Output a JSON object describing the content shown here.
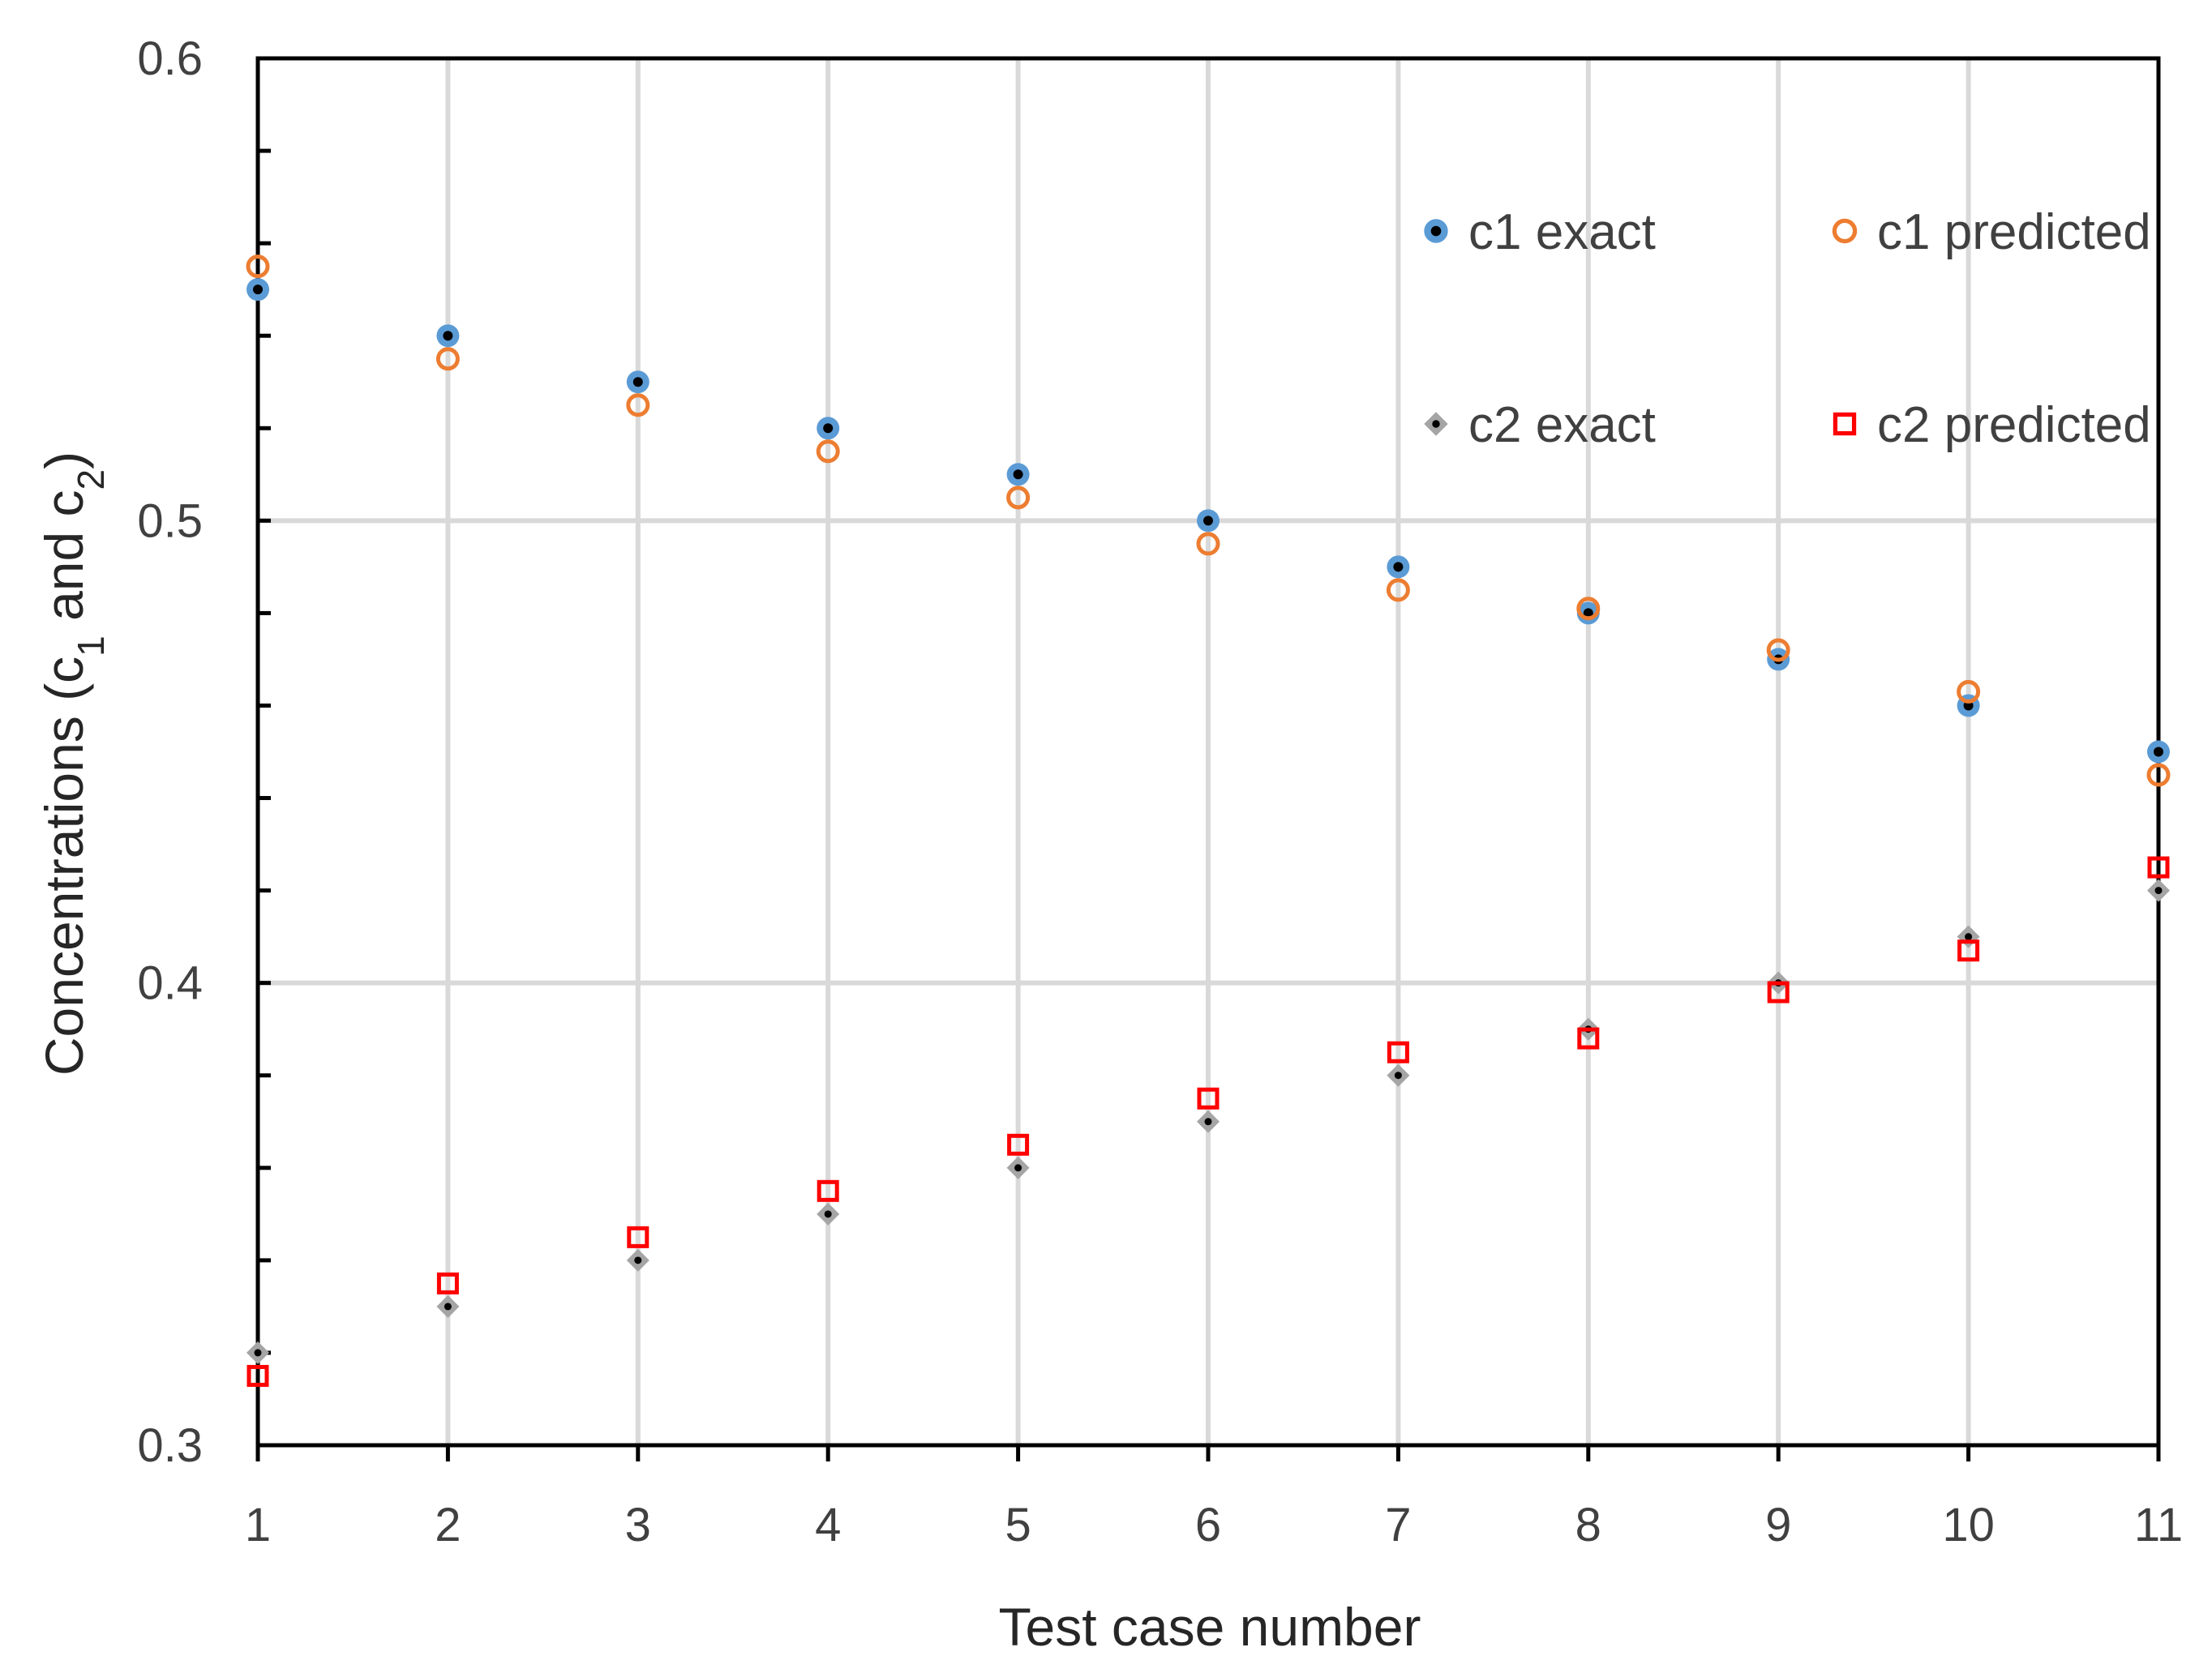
{
  "chart_data": {
    "type": "scatter",
    "title": "",
    "xlabel": "Test case number",
    "ylabel": {
      "main": "Concentrations (c",
      "sub1": "1",
      "mid": " and c",
      "sub2": "2",
      "end": ")"
    },
    "xlim": [
      1,
      11
    ],
    "ylim": [
      0.3,
      0.6
    ],
    "x_ticks": [
      1,
      2,
      3,
      4,
      5,
      6,
      7,
      8,
      9,
      10,
      11
    ],
    "x_tick_labels": [
      "1",
      "2",
      "3",
      "4",
      "5",
      "6",
      "7",
      "8",
      "9",
      "10",
      "11"
    ],
    "y_major_ticks": [
      0.3,
      0.4,
      0.5,
      0.6
    ],
    "y_tick_labels": [
      "0.3",
      "0.4",
      "0.5",
      "0.6"
    ],
    "y_minor_step": 0.02,
    "grid": true,
    "legend_placement": "top-right",
    "x": [
      1,
      2,
      3,
      4,
      5,
      6,
      7,
      8,
      9,
      10,
      11
    ],
    "series": [
      {
        "name": "c1 exact",
        "marker": "filled-circle",
        "color": "#5b9bd5",
        "center_color": "#000000",
        "values": [
          0.55,
          0.54,
          0.53,
          0.52,
          0.51,
          0.5,
          0.49,
          0.48,
          0.47,
          0.46,
          0.45
        ]
      },
      {
        "name": "c1 predicted",
        "marker": "open-circle",
        "color": "#ed7d31",
        "values": [
          0.555,
          0.535,
          0.525,
          0.515,
          0.505,
          0.495,
          0.485,
          0.481,
          0.472,
          0.463,
          0.445
        ]
      },
      {
        "name": "c2 exact",
        "marker": "filled-diamond",
        "color": "#a5a5a5",
        "center_color": "#000000",
        "values": [
          0.32,
          0.33,
          0.34,
          0.35,
          0.36,
          0.37,
          0.38,
          0.39,
          0.4,
          0.41,
          0.42
        ]
      },
      {
        "name": "c2 predicted",
        "marker": "open-square",
        "color": "#ff0000",
        "values": [
          0.315,
          0.335,
          0.345,
          0.355,
          0.365,
          0.375,
          0.385,
          0.388,
          0.398,
          0.407,
          0.425
        ]
      }
    ]
  }
}
